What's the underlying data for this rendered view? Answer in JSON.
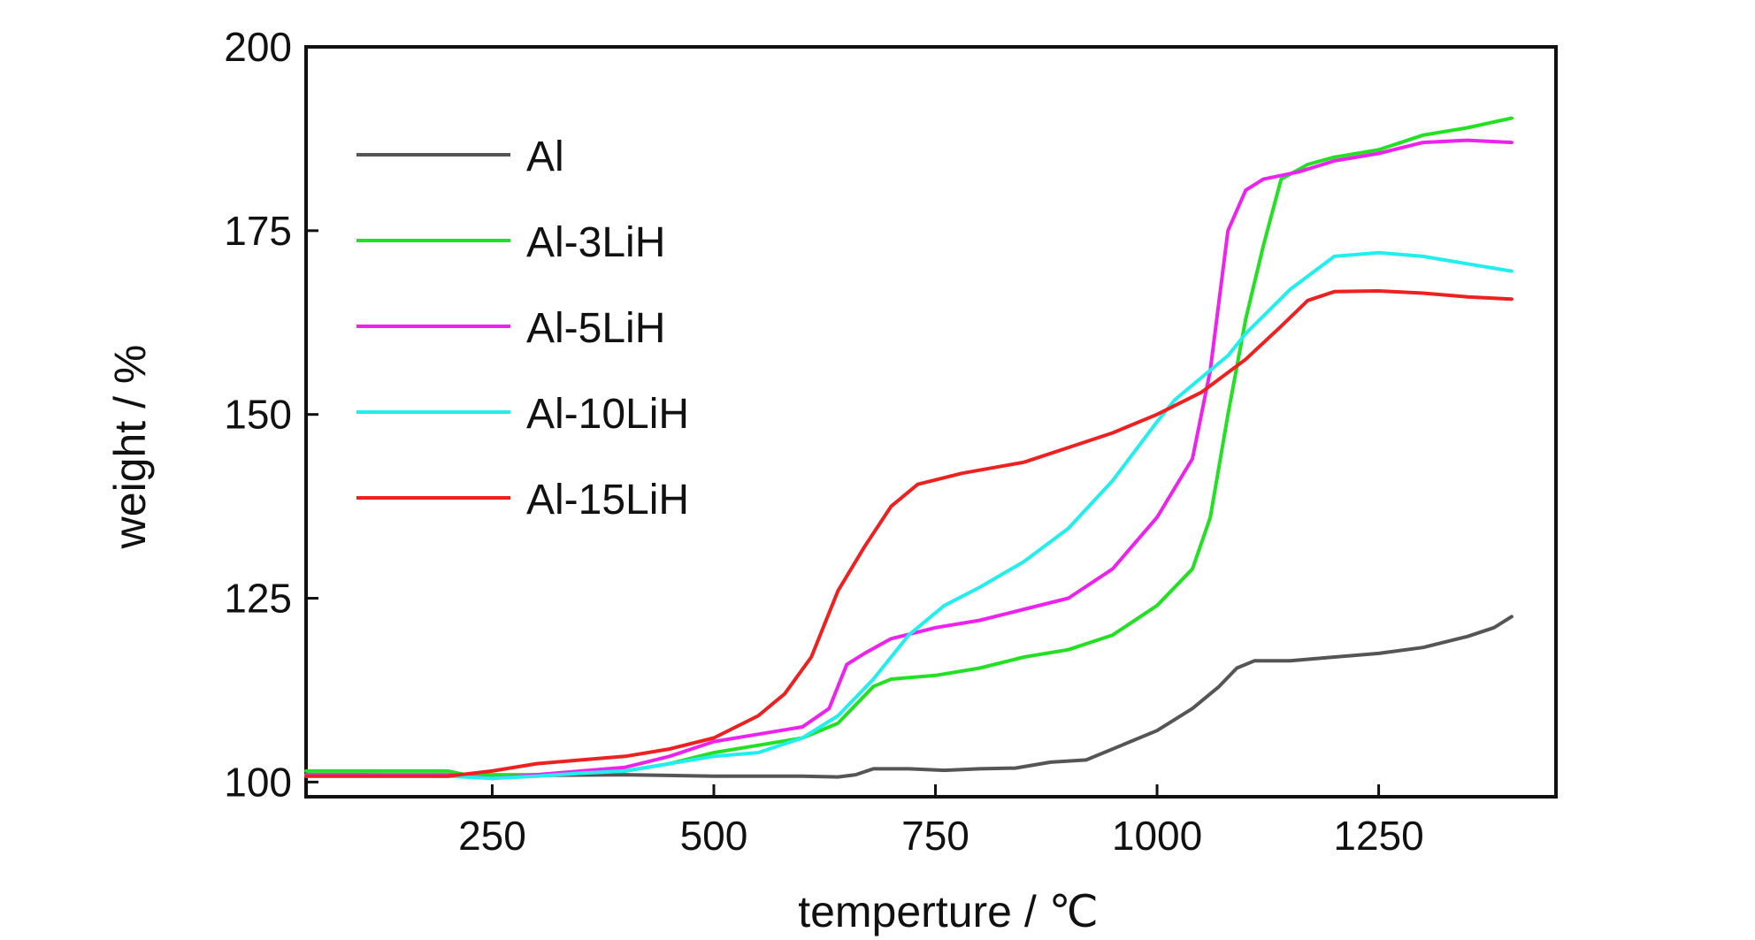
{
  "chart_data": {
    "type": "line",
    "title": "",
    "xlabel": "temperture / ℃",
    "ylabel": "weight / %",
    "xlim": [
      40,
      1450
    ],
    "ylim": [
      98,
      200
    ],
    "xticks": [
      250,
      500,
      750,
      1000,
      1250
    ],
    "yticks": [
      100,
      125,
      150,
      175,
      200
    ],
    "grid": false,
    "legend_position": "top-left",
    "series": [
      {
        "name": "Al",
        "color": "#555555",
        "points": [
          [
            40,
            101
          ],
          [
            100,
            101
          ],
          [
            200,
            100.8
          ],
          [
            300,
            100.9
          ],
          [
            400,
            101
          ],
          [
            500,
            100.8
          ],
          [
            600,
            100.8
          ],
          [
            640,
            100.7
          ],
          [
            660,
            101
          ],
          [
            680,
            101.8
          ],
          [
            720,
            101.8
          ],
          [
            760,
            101.6
          ],
          [
            800,
            101.8
          ],
          [
            840,
            101.9
          ],
          [
            880,
            102.7
          ],
          [
            920,
            103
          ],
          [
            960,
            105
          ],
          [
            1000,
            107
          ],
          [
            1040,
            110
          ],
          [
            1070,
            113
          ],
          [
            1090,
            115.5
          ],
          [
            1110,
            116.5
          ],
          [
            1150,
            116.5
          ],
          [
            1200,
            117
          ],
          [
            1250,
            117.5
          ],
          [
            1300,
            118.3
          ],
          [
            1350,
            119.8
          ],
          [
            1380,
            121
          ],
          [
            1400,
            122.5
          ]
        ]
      },
      {
        "name": "Al-3LiH",
        "color": "#22e022",
        "points": [
          [
            40,
            101.5
          ],
          [
            200,
            101.5
          ],
          [
            220,
            101
          ],
          [
            300,
            101
          ],
          [
            350,
            101.2
          ],
          [
            400,
            101.5
          ],
          [
            450,
            102.5
          ],
          [
            500,
            104
          ],
          [
            550,
            105
          ],
          [
            600,
            106
          ],
          [
            640,
            108
          ],
          [
            660,
            110.5
          ],
          [
            680,
            113
          ],
          [
            700,
            114
          ],
          [
            750,
            114.5
          ],
          [
            800,
            115.5
          ],
          [
            850,
            117
          ],
          [
            900,
            118
          ],
          [
            950,
            120
          ],
          [
            1000,
            124
          ],
          [
            1040,
            129
          ],
          [
            1060,
            136
          ],
          [
            1080,
            150
          ],
          [
            1100,
            163
          ],
          [
            1120,
            173
          ],
          [
            1140,
            182
          ],
          [
            1170,
            184
          ],
          [
            1200,
            185
          ],
          [
            1250,
            186
          ],
          [
            1300,
            188
          ],
          [
            1350,
            189
          ],
          [
            1400,
            190.3
          ]
        ]
      },
      {
        "name": "Al-5LiH",
        "color": "#ee22ee",
        "points": [
          [
            40,
            101
          ],
          [
            200,
            101
          ],
          [
            250,
            100.5
          ],
          [
            300,
            101
          ],
          [
            350,
            101.5
          ],
          [
            400,
            102
          ],
          [
            450,
            103.5
          ],
          [
            500,
            105.5
          ],
          [
            550,
            106.5
          ],
          [
            600,
            107.5
          ],
          [
            630,
            110
          ],
          [
            650,
            116
          ],
          [
            670,
            117.5
          ],
          [
            700,
            119.5
          ],
          [
            750,
            121
          ],
          [
            800,
            122
          ],
          [
            850,
            123.5
          ],
          [
            900,
            125
          ],
          [
            950,
            129
          ],
          [
            1000,
            136
          ],
          [
            1040,
            144
          ],
          [
            1060,
            156
          ],
          [
            1080,
            175
          ],
          [
            1100,
            180.5
          ],
          [
            1120,
            182
          ],
          [
            1160,
            183
          ],
          [
            1200,
            184.5
          ],
          [
            1250,
            185.5
          ],
          [
            1300,
            187
          ],
          [
            1350,
            187.3
          ],
          [
            1400,
            187
          ]
        ]
      },
      {
        "name": "Al-10LiH",
        "color": "#22eeee",
        "points": [
          [
            40,
            100.8
          ],
          [
            200,
            100.8
          ],
          [
            250,
            100.5
          ],
          [
            300,
            100.8
          ],
          [
            350,
            101.2
          ],
          [
            400,
            101.5
          ],
          [
            450,
            102.5
          ],
          [
            500,
            103.5
          ],
          [
            550,
            104
          ],
          [
            600,
            106
          ],
          [
            640,
            109
          ],
          [
            680,
            114
          ],
          [
            720,
            120
          ],
          [
            760,
            124
          ],
          [
            800,
            126.5
          ],
          [
            850,
            130
          ],
          [
            900,
            134.5
          ],
          [
            950,
            141
          ],
          [
            1000,
            149
          ],
          [
            1020,
            152
          ],
          [
            1050,
            155
          ],
          [
            1080,
            158
          ],
          [
            1100,
            161
          ],
          [
            1150,
            167
          ],
          [
            1200,
            171.5
          ],
          [
            1250,
            172
          ],
          [
            1300,
            171.5
          ],
          [
            1350,
            170.5
          ],
          [
            1400,
            169.5
          ]
        ]
      },
      {
        "name": "Al-15LiH",
        "color": "#ee2020",
        "points": [
          [
            40,
            100.8
          ],
          [
            200,
            100.8
          ],
          [
            250,
            101.5
          ],
          [
            300,
            102.5
          ],
          [
            350,
            103
          ],
          [
            400,
            103.5
          ],
          [
            450,
            104.5
          ],
          [
            500,
            106
          ],
          [
            550,
            109
          ],
          [
            580,
            112
          ],
          [
            610,
            117
          ],
          [
            640,
            126
          ],
          [
            670,
            132
          ],
          [
            700,
            137.5
          ],
          [
            730,
            140.5
          ],
          [
            780,
            142
          ],
          [
            850,
            143.5
          ],
          [
            900,
            145.5
          ],
          [
            950,
            147.5
          ],
          [
            1000,
            150
          ],
          [
            1050,
            153
          ],
          [
            1100,
            157.5
          ],
          [
            1140,
            162
          ],
          [
            1170,
            165.5
          ],
          [
            1200,
            166.7
          ],
          [
            1250,
            166.8
          ],
          [
            1300,
            166.5
          ],
          [
            1350,
            166
          ],
          [
            1400,
            165.7
          ]
        ]
      }
    ]
  }
}
